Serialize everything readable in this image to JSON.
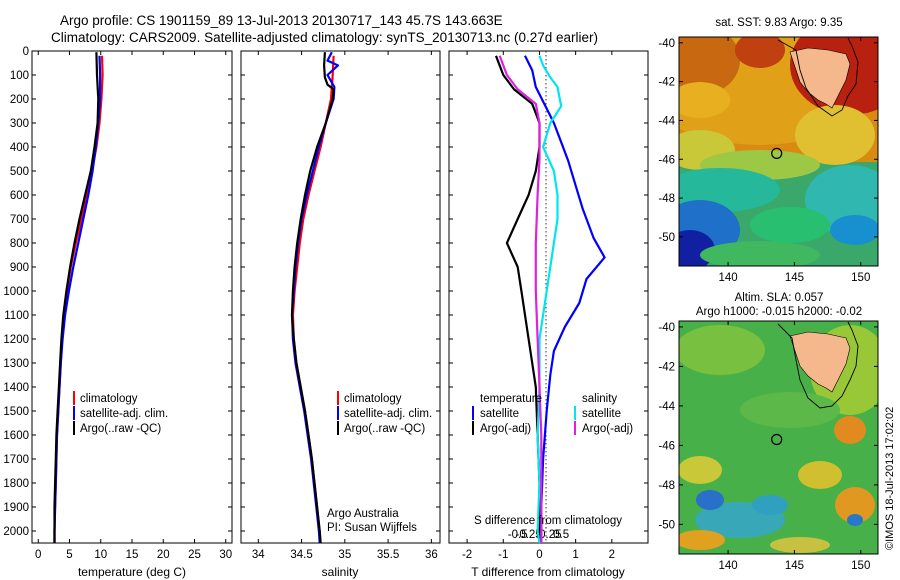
{
  "header": {
    "line1": "Argo profile: CS 1901159_89 13-Jul-2013 20130717_143 45.7S 143.663E",
    "line2": "Climatology: CARS2009. Satellite-adjusted climatology: synTS_20130713.nc (0.27d earlier)"
  },
  "colors": {
    "red": "#ff0000",
    "blue": "#0000ff",
    "black": "#000000",
    "cyan": "#00e5ee",
    "magenta": "#e020e0",
    "land": "#f4b88c"
  },
  "chart_data": [
    {
      "type": "line",
      "id": "temperature",
      "xlabel": "temperature (deg C)",
      "xlim": [
        -1,
        31
      ],
      "xticks": [
        0,
        5,
        10,
        15,
        20,
        25,
        30
      ],
      "ylim": [
        0,
        2050
      ],
      "yticks": [
        0,
        100,
        200,
        300,
        400,
        500,
        600,
        700,
        800,
        900,
        1000,
        1100,
        1200,
        1300,
        1400,
        1500,
        1600,
        1700,
        1800,
        1900,
        2000
      ],
      "legend": [
        "climatology",
        "satellite-adj. clim.",
        "Argo(..raw -QC)"
      ],
      "series": [
        {
          "name": "climatology",
          "color": "red",
          "points": [
            [
              10.2,
              20
            ],
            [
              10.3,
              100
            ],
            [
              10.1,
              200
            ],
            [
              9.8,
              300
            ],
            [
              9.3,
              400
            ],
            [
              8.6,
              500
            ],
            [
              7.8,
              600
            ],
            [
              6.9,
              700
            ],
            [
              6.0,
              800
            ],
            [
              5.2,
              900
            ],
            [
              4.6,
              1000
            ],
            [
              4.1,
              1100
            ],
            [
              3.8,
              1200
            ],
            [
              3.6,
              1300
            ],
            [
              3.4,
              1400
            ],
            [
              3.2,
              1500
            ],
            [
              3.0,
              1600
            ],
            [
              2.9,
              1700
            ],
            [
              2.8,
              1800
            ],
            [
              2.7,
              1900
            ],
            [
              2.6,
              2000
            ],
            [
              2.6,
              2050
            ]
          ]
        },
        {
          "name": "satellite-adj. clim.",
          "color": "blue",
          "points": [
            [
              9.8,
              20
            ],
            [
              9.9,
              100
            ],
            [
              9.9,
              200
            ],
            [
              9.6,
              300
            ],
            [
              9.2,
              400
            ],
            [
              8.7,
              500
            ],
            [
              8.0,
              600
            ],
            [
              7.2,
              700
            ],
            [
              6.4,
              800
            ],
            [
              5.6,
              900
            ],
            [
              4.9,
              1000
            ],
            [
              4.3,
              1100
            ],
            [
              3.9,
              1200
            ],
            [
              3.6,
              1300
            ],
            [
              3.4,
              1400
            ],
            [
              3.2,
              1500
            ],
            [
              3.0,
              1600
            ],
            [
              2.9,
              1700
            ],
            [
              2.8,
              1800
            ],
            [
              2.7,
              1900
            ],
            [
              2.6,
              2000
            ],
            [
              2.6,
              2050
            ]
          ]
        },
        {
          "name": "Argo(..raw -QC)",
          "color": "black",
          "points": [
            [
              9.3,
              5
            ],
            [
              9.4,
              100
            ],
            [
              9.6,
              200
            ],
            [
              9.5,
              300
            ],
            [
              9.0,
              400
            ],
            [
              8.4,
              500
            ],
            [
              7.5,
              600
            ],
            [
              6.6,
              700
            ],
            [
              5.8,
              800
            ],
            [
              5.1,
              900
            ],
            [
              4.5,
              1000
            ],
            [
              4.0,
              1100
            ],
            [
              3.7,
              1200
            ],
            [
              3.5,
              1300
            ],
            [
              3.3,
              1400
            ],
            [
              3.1,
              1500
            ],
            [
              2.9,
              1600
            ],
            [
              2.8,
              1700
            ],
            [
              2.7,
              1800
            ],
            [
              2.6,
              1900
            ],
            [
              2.6,
              2000
            ],
            [
              2.6,
              2050
            ]
          ]
        }
      ]
    },
    {
      "type": "line",
      "id": "salinity",
      "xlabel": "salinity",
      "xlim": [
        33.8,
        36.1
      ],
      "xticks": [
        34,
        34.5,
        35,
        35.5,
        36
      ],
      "ylim": [
        0,
        2050
      ],
      "legend": [
        "climatology",
        "satellite-adj. clim.",
        "Argo(..raw -QC)"
      ],
      "annotation": [
        "Argo Australia",
        "PI: Susan Wijffels"
      ],
      "series": [
        {
          "name": "climatology",
          "color": "red",
          "points": [
            [
              34.87,
              20
            ],
            [
              34.86,
              100
            ],
            [
              34.84,
              200
            ],
            [
              34.78,
              300
            ],
            [
              34.72,
              400
            ],
            [
              34.65,
              500
            ],
            [
              34.58,
              600
            ],
            [
              34.52,
              700
            ],
            [
              34.48,
              800
            ],
            [
              34.45,
              900
            ],
            [
              34.42,
              1000
            ],
            [
              34.4,
              1100
            ],
            [
              34.41,
              1200
            ],
            [
              34.44,
              1300
            ],
            [
              34.49,
              1400
            ],
            [
              34.54,
              1500
            ],
            [
              34.58,
              1600
            ],
            [
              34.62,
              1700
            ],
            [
              34.65,
              1800
            ],
            [
              34.68,
              1900
            ],
            [
              34.71,
              2000
            ],
            [
              34.72,
              2050
            ]
          ]
        },
        {
          "name": "satellite-adj. clim.",
          "color": "blue",
          "points": [
            [
              34.85,
              5
            ],
            [
              34.8,
              40
            ],
            [
              34.92,
              60
            ],
            [
              34.8,
              100
            ],
            [
              34.88,
              150
            ],
            [
              34.87,
              200
            ],
            [
              34.78,
              300
            ],
            [
              34.7,
              400
            ],
            [
              34.63,
              500
            ],
            [
              34.56,
              600
            ],
            [
              34.5,
              700
            ],
            [
              34.46,
              800
            ],
            [
              34.43,
              900
            ],
            [
              34.41,
              1000
            ],
            [
              34.39,
              1100
            ],
            [
              34.4,
              1200
            ],
            [
              34.43,
              1300
            ],
            [
              34.48,
              1400
            ],
            [
              34.53,
              1500
            ],
            [
              34.57,
              1600
            ],
            [
              34.61,
              1700
            ],
            [
              34.64,
              1800
            ],
            [
              34.67,
              1900
            ],
            [
              34.7,
              2000
            ],
            [
              34.71,
              2050
            ]
          ]
        },
        {
          "name": "Argo(..raw -QC)",
          "color": "black",
          "points": [
            [
              34.77,
              5
            ],
            [
              34.76,
              60
            ],
            [
              34.77,
              110
            ],
            [
              34.8,
              140
            ],
            [
              34.87,
              160
            ],
            [
              34.86,
              200
            ],
            [
              34.78,
              300
            ],
            [
              34.68,
              400
            ],
            [
              34.6,
              500
            ],
            [
              34.54,
              600
            ],
            [
              34.49,
              700
            ],
            [
              34.45,
              800
            ],
            [
              34.42,
              900
            ],
            [
              34.4,
              1000
            ],
            [
              34.39,
              1100
            ],
            [
              34.41,
              1200
            ],
            [
              34.44,
              1300
            ],
            [
              34.49,
              1400
            ],
            [
              34.54,
              1500
            ],
            [
              34.58,
              1600
            ],
            [
              34.62,
              1700
            ],
            [
              34.65,
              1800
            ],
            [
              34.68,
              1900
            ],
            [
              34.71,
              2000
            ],
            [
              34.72,
              2050
            ]
          ]
        }
      ]
    },
    {
      "type": "line",
      "id": "differences",
      "xlabel": "T difference from climatology",
      "xlim": [
        -2.5,
        3
      ],
      "xticks": [
        -2,
        -1,
        0,
        1,
        2
      ],
      "top_label": "S difference from climatology",
      "top_ticks": [
        "-0.5",
        "-0.25",
        "0",
        "0.25",
        "0.5"
      ],
      "ylim": [
        0,
        2050
      ],
      "legend_left": {
        "title": "temperature",
        "items": [
          "satellite",
          "Argo(-adj)"
        ]
      },
      "legend_right": {
        "title": "salinity",
        "items": [
          "satellite",
          "Argo(-adj)"
        ]
      },
      "series": [
        {
          "name": "T satellite",
          "color": "blue",
          "points": [
            [
              -0.4,
              20
            ],
            [
              -0.2,
              80
            ],
            [
              -0.1,
              150
            ],
            [
              0.2,
              240
            ],
            [
              0.4,
              300
            ],
            [
              0.6,
              380
            ],
            [
              0.8,
              460
            ],
            [
              1.0,
              560
            ],
            [
              1.2,
              660
            ],
            [
              1.5,
              780
            ],
            [
              1.8,
              860
            ],
            [
              1.3,
              950
            ],
            [
              1.1,
              1050
            ],
            [
              0.7,
              1150
            ],
            [
              0.4,
              1250
            ],
            [
              0.3,
              1350
            ],
            [
              0.2,
              1500
            ],
            [
              0.1,
              1700
            ],
            [
              0.05,
              1900
            ],
            [
              0.05,
              2050
            ]
          ]
        },
        {
          "name": "T Argo(-adj)",
          "color": "black",
          "points": [
            [
              -1.2,
              20
            ],
            [
              -1.0,
              100
            ],
            [
              -0.7,
              160
            ],
            [
              -0.2,
              220
            ],
            [
              0.0,
              300
            ],
            [
              0.0,
              400
            ],
            [
              -0.1,
              500
            ],
            [
              -0.3,
              600
            ],
            [
              -0.6,
              700
            ],
            [
              -0.9,
              800
            ],
            [
              -0.6,
              900
            ],
            [
              -0.5,
              1000
            ],
            [
              -0.4,
              1100
            ],
            [
              -0.3,
              1200
            ],
            [
              -0.2,
              1300
            ],
            [
              -0.1,
              1400
            ],
            [
              -0.05,
              1600
            ],
            [
              0.0,
              1800
            ],
            [
              0.0,
              2050
            ]
          ]
        },
        {
          "name": "S satellite",
          "color": "cyan",
          "points": [
            [
              0.0,
              20
            ],
            [
              0.1,
              60
            ],
            [
              0.3,
              110
            ],
            [
              0.5,
              150
            ],
            [
              0.6,
              230
            ],
            [
              0.3,
              300
            ],
            [
              0.1,
              400
            ],
            [
              0.4,
              500
            ],
            [
              0.5,
              600
            ],
            [
              0.5,
              700
            ],
            [
              0.4,
              800
            ],
            [
              0.3,
              900
            ],
            [
              0.2,
              1000
            ],
            [
              0.1,
              1100
            ],
            [
              0.0,
              1200
            ],
            [
              0.0,
              1400
            ],
            [
              -0.05,
              1600
            ],
            [
              0.0,
              1800
            ],
            [
              -0.05,
              2000
            ],
            [
              0.0,
              2050
            ]
          ]
        },
        {
          "name": "S Argo(-adj)",
          "color": "magenta",
          "points": [
            [
              -1.1,
              20
            ],
            [
              -0.9,
              100
            ],
            [
              -0.6,
              160
            ],
            [
              -0.1,
              220
            ],
            [
              0.0,
              300
            ],
            [
              0.0,
              450
            ],
            [
              -0.05,
              600
            ],
            [
              -0.1,
              800
            ],
            [
              -0.1,
              1000
            ],
            [
              -0.05,
              1200
            ],
            [
              0.0,
              1400
            ],
            [
              0.05,
              1600
            ],
            [
              0.05,
              1800
            ],
            [
              0.05,
              2050
            ]
          ]
        }
      ]
    },
    {
      "type": "heatmap",
      "id": "sst-map",
      "title": "sat. SST: 9.83  Argo: 9.35",
      "xticks": [
        140,
        145,
        150
      ],
      "yticks": [
        -40,
        -42,
        -44,
        -46,
        -48,
        -50
      ],
      "xlim": [
        136.3,
        151.3
      ],
      "ylim": [
        -51.5,
        -39.7
      ],
      "marker": {
        "lon": 143.663,
        "lat": -45.7
      }
    },
    {
      "type": "heatmap",
      "id": "sla-map",
      "title": "Altim. SLA: 0.057",
      "subtitle": "Argo h1000: -0.015  h2000: -0.02",
      "xticks": [
        140,
        145,
        150
      ],
      "yticks": [
        -40,
        -42,
        -44,
        -46,
        -48,
        -50
      ],
      "xlim": [
        136.3,
        151.3
      ],
      "ylim": [
        -51.5,
        -39.7
      ],
      "marker": {
        "lon": 143.663,
        "lat": -45.7
      }
    }
  ],
  "footer": {
    "stamp": "©IMOS 18-Jul-2013 17:02:02"
  }
}
